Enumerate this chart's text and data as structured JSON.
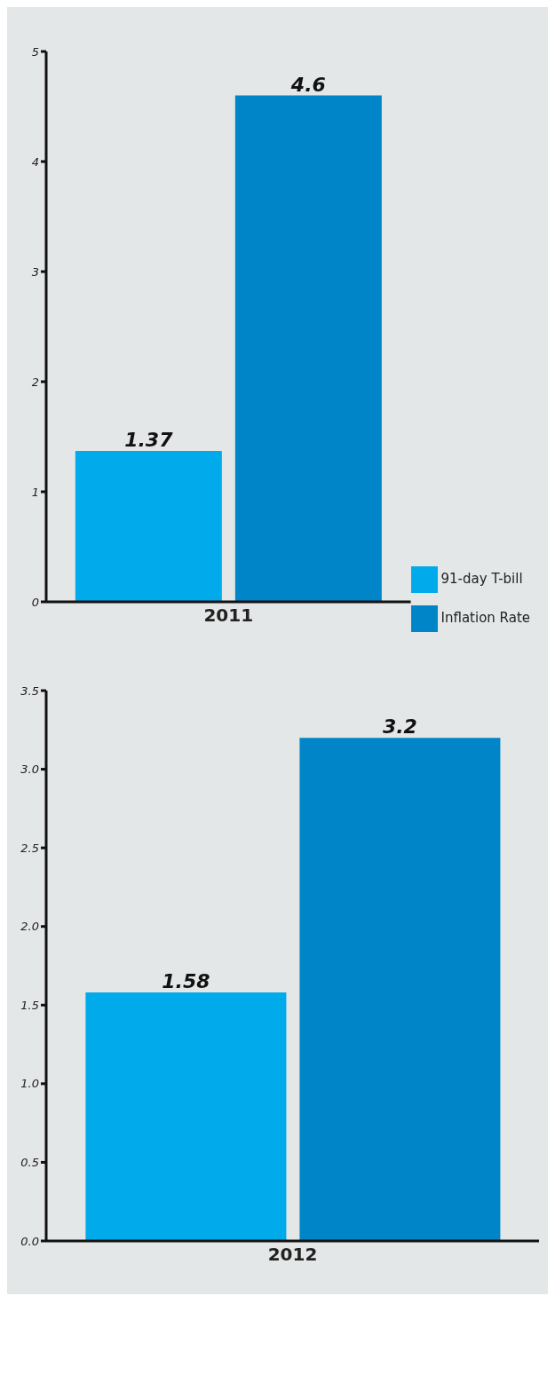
{
  "chart_data": [
    {
      "type": "bar",
      "categories": [
        "2011"
      ],
      "series": [
        {
          "name": "91-day T-bill",
          "color": "#00aaeb",
          "values": [
            1.37
          ]
        },
        {
          "name": "Inflation Rate",
          "color": "#0086c8",
          "values": [
            4.6
          ]
        }
      ],
      "ylim": [
        0,
        5
      ],
      "yticks": [
        0,
        1,
        2,
        3,
        4,
        5
      ],
      "data_labels": true,
      "legend": "bottom right"
    },
    {
      "type": "bar",
      "categories": [
        "2012"
      ],
      "series": [
        {
          "color": "#00aaeb",
          "values": [
            1.58
          ]
        },
        {
          "color": "#0086c8",
          "values": [
            3.2
          ]
        }
      ],
      "ylim": [
        0,
        3.5
      ],
      "yticks": [
        {
          "value": 0,
          "label": "0.0"
        },
        {
          "value": 0.5,
          "label": "0.5"
        },
        {
          "value": 1,
          "label": "1.0"
        },
        {
          "value": 1.5,
          "label": "1.5"
        },
        {
          "value": 2,
          "label": "2.0"
        },
        {
          "value": 2.5,
          "label": "2.5"
        },
        {
          "value": 3,
          "label": "3.0"
        },
        {
          "value": 3.5,
          "label": "3.5"
        }
      ],
      "data_labels": true
    }
  ]
}
